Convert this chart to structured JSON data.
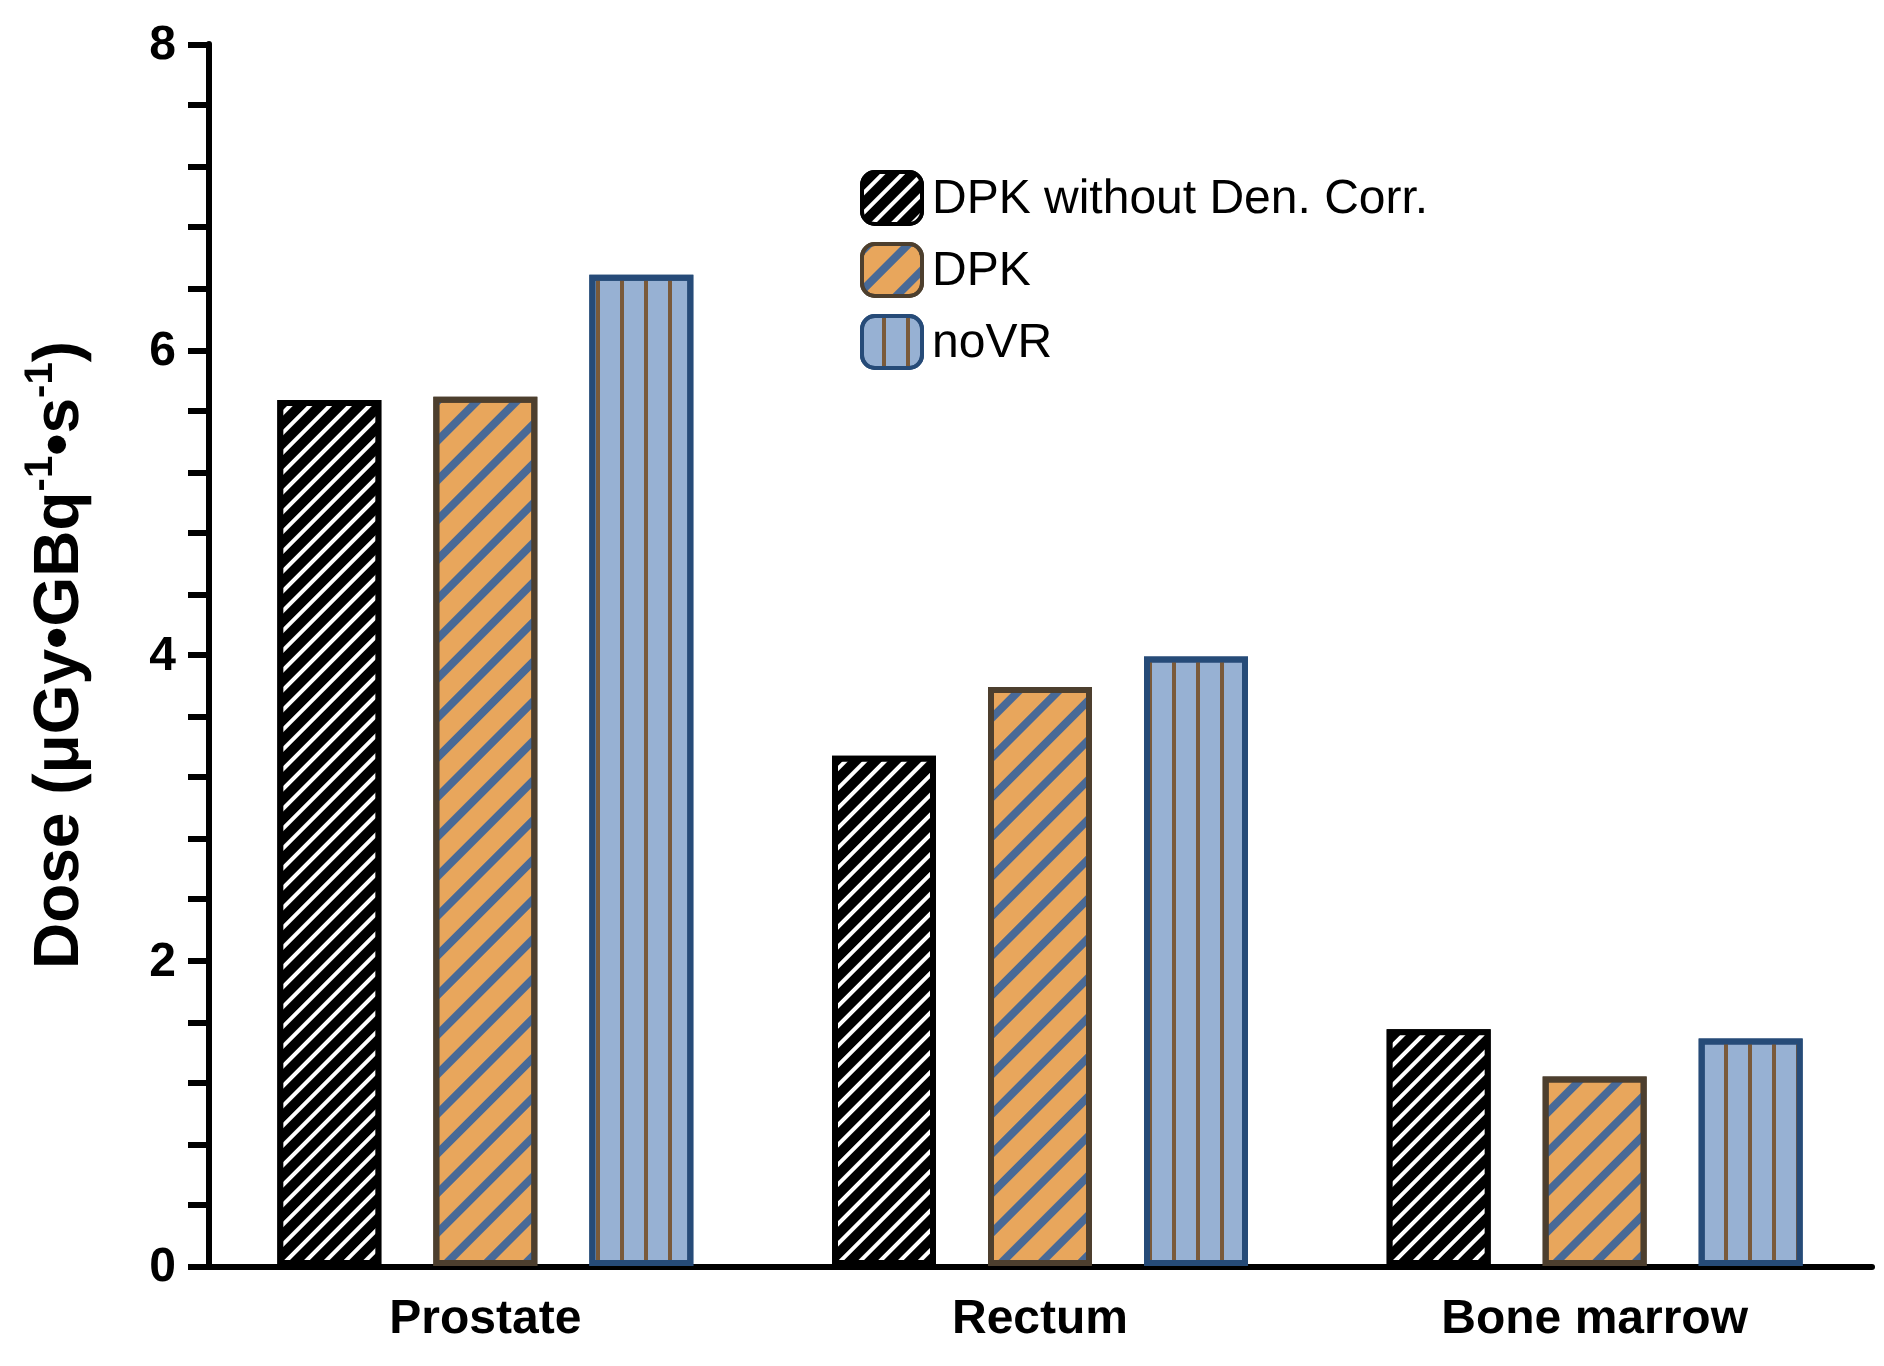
{
  "chart_data": {
    "type": "bar",
    "ylabel": "Dose (μGy•GBq$^{-1}$•s$^{-1}$)",
    "categories": [
      "Prostate",
      "Rectum",
      "Bone marrow"
    ],
    "series": [
      {
        "name": "DPK without Den. Corr.",
        "color": "#000000",
        "values": [
          5.67,
          3.34,
          1.55
        ]
      },
      {
        "name": "DPK",
        "color": "#e8a65c",
        "values": [
          5.69,
          3.79,
          1.24
        ]
      },
      {
        "name": "noVR",
        "color": "#97b1d3",
        "values": [
          6.49,
          3.99,
          1.49
        ]
      }
    ],
    "ylim": [
      0,
      8
    ],
    "yticks": [
      0,
      {
        "value": 0.4,
        "label": null
      },
      {
        "value": 0.8,
        "label": null
      },
      {
        "value": 1.2,
        "label": null
      },
      {
        "value": 1.6,
        "label": null
      },
      2,
      {
        "value": 2.4,
        "label": null
      },
      {
        "value": 2.8,
        "label": null
      },
      {
        "value": 3.2,
        "label": null
      },
      {
        "value": 3.6,
        "label": null
      },
      4,
      {
        "value": 4.4,
        "label": null
      },
      {
        "value": 4.8,
        "label": null
      },
      {
        "value": 5.2,
        "label": null
      },
      {
        "value": 5.6,
        "label": null
      },
      6,
      {
        "value": 6.4,
        "label": null
      },
      {
        "value": 6.8,
        "label": null
      },
      {
        "value": 7.2,
        "label": null
      },
      {
        "value": 7.6,
        "label": null
      },
      8
    ],
    "grid": false,
    "legend": "top right"
  }
}
